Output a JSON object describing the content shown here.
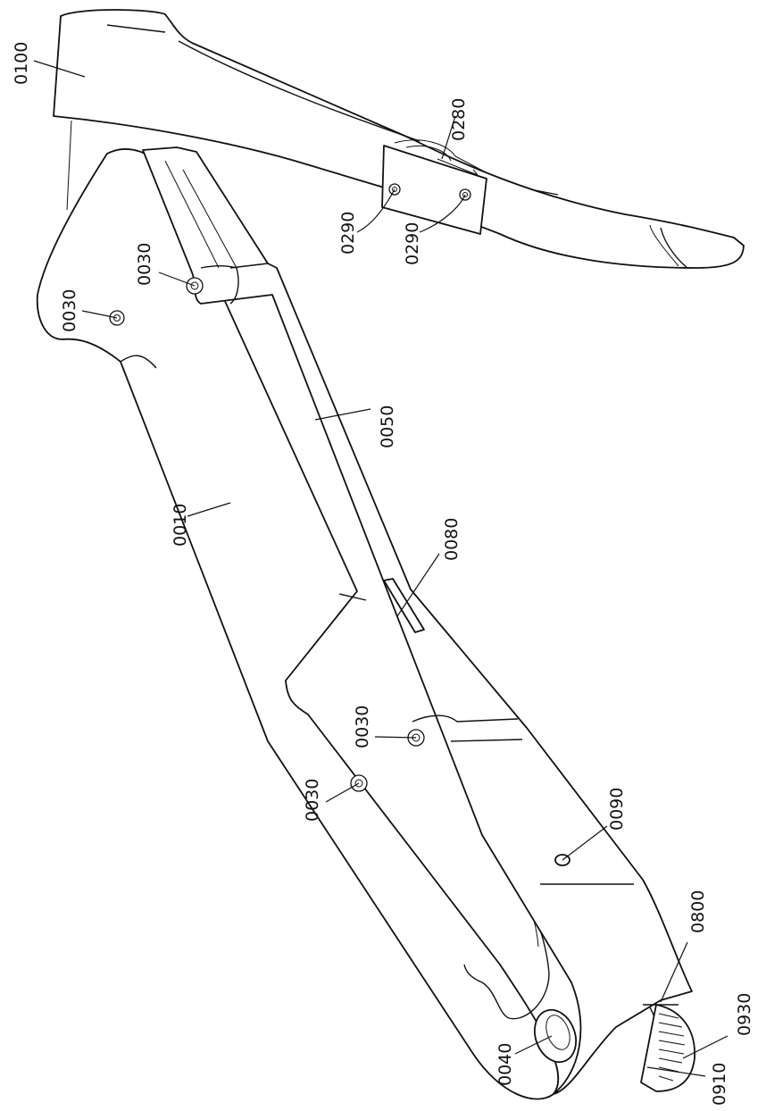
{
  "labels": {
    "l0100": "0100",
    "l0280": "0280",
    "l0290a": "0290",
    "l0290b": "0290",
    "l0030a": "0030",
    "l0030b": "0030",
    "l0030c": "0030",
    "l0030d": "0030",
    "l0050": "0050",
    "l0010": "0010",
    "l0080": "0080",
    "l0090": "0090",
    "l0800": "0800",
    "l0930": "0930",
    "l0910": "0910",
    "l0040": "0040"
  }
}
